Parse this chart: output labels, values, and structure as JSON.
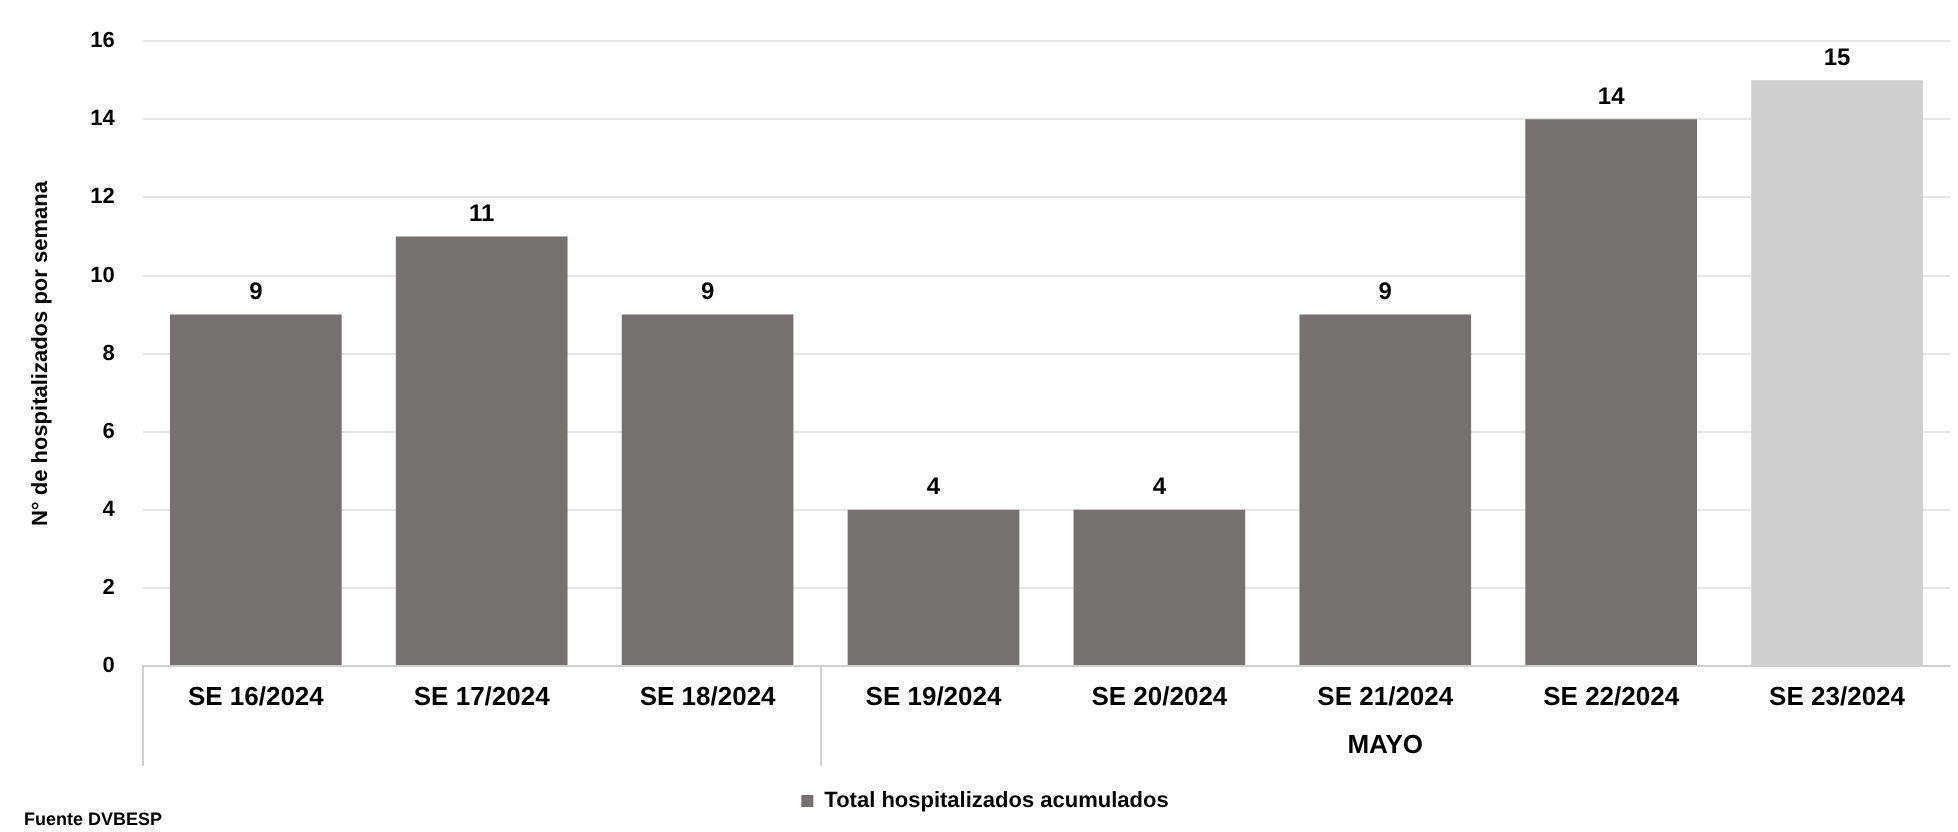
{
  "chart_data": {
    "type": "bar",
    "ylabel": "N° de hospitalizados por semana",
    "categories": [
      "SE 16/2024",
      "SE 17/2024",
      "SE 18/2024",
      "SE 19/2024",
      "SE 20/2024",
      "SE 21/2024",
      "SE 22/2024",
      "SE 23/2024"
    ],
    "series": [
      {
        "name": "Total hospitalizados acumulados",
        "color": "#767171",
        "colors": [
          "#767171",
          "#767171",
          "#767171",
          "#767171",
          "#767171",
          "#767171",
          "#767171",
          "#cfcfcf"
        ],
        "values": [
          9,
          11,
          9,
          4,
          4,
          9,
          14,
          15
        ]
      }
    ],
    "ylim": [
      0,
      16
    ],
    "yticks": [
      0,
      2,
      4,
      6,
      8,
      10,
      12,
      14,
      16
    ],
    "grid": "y",
    "legend": "bottom",
    "data_labels": true,
    "annotations": [
      "MAYO",
      "Fuente DVBESP"
    ]
  }
}
